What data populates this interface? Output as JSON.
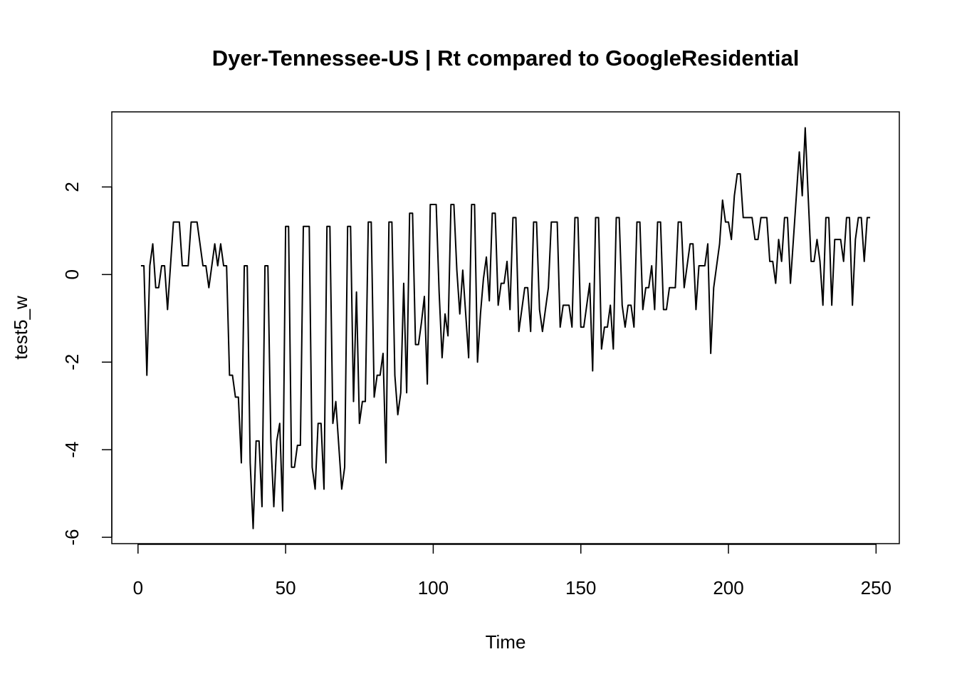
{
  "chart_data": {
    "type": "line",
    "title": "Dyer-Tennessee-US | Rt compared to GoogleResidential",
    "x_label": "Time",
    "y_label": "test5_w",
    "x": [
      1,
      2,
      3,
      4,
      5,
      6,
      7,
      8,
      9,
      10,
      11,
      12,
      13,
      14,
      15,
      16,
      17,
      18,
      19,
      20,
      21,
      22,
      23,
      24,
      25,
      26,
      27,
      28,
      29,
      30,
      31,
      32,
      33,
      34,
      35,
      36,
      37,
      38,
      39,
      40,
      41,
      42,
      43,
      44,
      45,
      46,
      47,
      48,
      49,
      50,
      51,
      52,
      53,
      54,
      55,
      56,
      57,
      58,
      59,
      60,
      61,
      62,
      63,
      64,
      65,
      66,
      67,
      68,
      69,
      70,
      71,
      72,
      73,
      74,
      75,
      76,
      77,
      78,
      79,
      80,
      81,
      82,
      83,
      84,
      85,
      86,
      87,
      88,
      89,
      90,
      91,
      92,
      93,
      94,
      95,
      96,
      97,
      98,
      99,
      100,
      101,
      102,
      103,
      104,
      105,
      106,
      107,
      108,
      109,
      110,
      111,
      112,
      113,
      114,
      115,
      116,
      117,
      118,
      119,
      120,
      121,
      122,
      123,
      124,
      125,
      126,
      127,
      128,
      129,
      130,
      131,
      132,
      133,
      134,
      135,
      136,
      137,
      138,
      139,
      140,
      141,
      142,
      143,
      144,
      145,
      146,
      147,
      148,
      149,
      150,
      151,
      152,
      153,
      154,
      155,
      156,
      157,
      158,
      159,
      160,
      161,
      162,
      163,
      164,
      165,
      166,
      167,
      168,
      169,
      170,
      171,
      172,
      173,
      174,
      175,
      176,
      177,
      178,
      179,
      180,
      181,
      182,
      183,
      184,
      185,
      186,
      187,
      188,
      189,
      190,
      191,
      192,
      193,
      194,
      195,
      196,
      197,
      198,
      199,
      200,
      201,
      202,
      203,
      204,
      205,
      206,
      207,
      208,
      209,
      210,
      211,
      212,
      213,
      214,
      215,
      216,
      217,
      218,
      219,
      220,
      221,
      222,
      223,
      224,
      225,
      226,
      227,
      228,
      229,
      230,
      231,
      232,
      233,
      234,
      235,
      236,
      237,
      238,
      239,
      240,
      241,
      242,
      243,
      244,
      245,
      246,
      247,
      248
    ],
    "values": [
      0.2,
      0.2,
      -2.3,
      0.2,
      0.7,
      -0.3,
      -0.3,
      0.2,
      0.2,
      -0.8,
      0.2,
      1.2,
      1.2,
      1.2,
      0.2,
      0.2,
      0.2,
      1.2,
      1.2,
      1.2,
      0.7,
      0.2,
      0.2,
      -0.3,
      0.2,
      0.7,
      0.2,
      0.7,
      0.2,
      0.2,
      -2.3,
      -2.3,
      -2.8,
      -2.8,
      -4.3,
      0.2,
      0.2,
      -4.3,
      -5.8,
      -3.8,
      -3.8,
      -5.3,
      0.2,
      0.2,
      -3.8,
      -5.3,
      -3.8,
      -3.4,
      -5.4,
      1.1,
      1.1,
      -4.4,
      -4.4,
      -3.9,
      -3.9,
      1.1,
      1.1,
      1.1,
      -4.4,
      -4.9,
      -3.4,
      -3.4,
      -4.9,
      1.1,
      1.1,
      -3.4,
      -2.9,
      -3.9,
      -4.9,
      -4.4,
      1.1,
      1.1,
      -2.9,
      -0.4,
      -3.4,
      -2.9,
      -2.9,
      1.2,
      1.2,
      -2.8,
      -2.3,
      -2.3,
      -1.8,
      -4.3,
      1.2,
      1.2,
      -2.3,
      -3.2,
      -2.7,
      -0.2,
      -2.7,
      1.4,
      1.4,
      -1.6,
      -1.6,
      -1.1,
      -0.5,
      -2.5,
      1.6,
      1.6,
      1.6,
      -0.4,
      -1.9,
      -0.9,
      -1.4,
      1.6,
      1.6,
      0.1,
      -0.9,
      0.1,
      -0.9,
      -1.9,
      1.6,
      1.6,
      -2.0,
      -0.9,
      -0.1,
      0.4,
      -0.6,
      1.4,
      1.4,
      -0.7,
      -0.2,
      -0.2,
      0.3,
      -0.8,
      1.3,
      1.3,
      -1.3,
      -0.8,
      -0.3,
      -0.3,
      -1.3,
      1.2,
      1.2,
      -0.8,
      -1.3,
      -0.8,
      -0.3,
      1.2,
      1.2,
      1.2,
      -1.2,
      -0.7,
      -0.7,
      -0.7,
      -1.2,
      1.3,
      1.3,
      -1.2,
      -1.2,
      -0.7,
      -0.2,
      -2.2,
      1.3,
      1.3,
      -1.7,
      -1.2,
      -1.2,
      -0.7,
      -1.7,
      1.3,
      1.3,
      -0.7,
      -1.2,
      -0.7,
      -0.7,
      -1.2,
      1.2,
      1.2,
      -0.8,
      -0.3,
      -0.3,
      0.2,
      -0.8,
      1.2,
      1.2,
      -0.8,
      -0.8,
      -0.3,
      -0.3,
      -0.3,
      1.2,
      1.2,
      -0.3,
      0.2,
      0.7,
      0.7,
      -0.8,
      0.2,
      0.2,
      0.2,
      0.7,
      -1.8,
      -0.3,
      0.2,
      0.7,
      1.7,
      1.2,
      1.2,
      0.8,
      1.8,
      2.3,
      2.3,
      1.3,
      1.3,
      1.3,
      1.3,
      0.8,
      0.8,
      1.3,
      1.3,
      1.3,
      0.3,
      0.3,
      -0.2,
      0.8,
      0.3,
      1.3,
      1.3,
      -0.2,
      0.8,
      1.8,
      2.8,
      1.8,
      3.35,
      1.8,
      0.3,
      0.3,
      0.8,
      0.3,
      -0.7,
      1.3,
      1.3,
      -0.7,
      0.8,
      0.8,
      0.8,
      0.3,
      1.3,
      1.3,
      -0.7,
      0.8,
      1.3,
      1.3,
      0.3,
      1.3,
      1.3
    ],
    "color": "#000000",
    "xlim": [
      -8.88,
      257.88
    ],
    "ylim": [
      -6.145,
      3.715
    ],
    "xticks": [
      0,
      50,
      100,
      150,
      200,
      250
    ],
    "yticks": [
      -6,
      -4,
      -2,
      0,
      2
    ]
  }
}
